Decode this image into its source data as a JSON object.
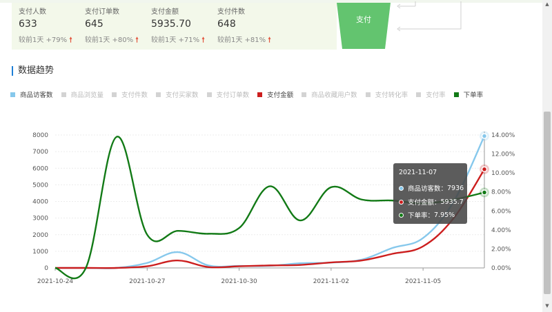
{
  "stats": [
    {
      "label": "支付人数",
      "value": "633",
      "compare": "较前1天 +79%"
    },
    {
      "label": "支付订单数",
      "value": "645",
      "compare": "较前1天 +80%"
    },
    {
      "label": "支付金额",
      "value": "5935.70",
      "compare": "较前1天 +71%"
    },
    {
      "label": "支付件数",
      "value": "648",
      "compare": "较前1天 +81%"
    }
  ],
  "funnel": {
    "pay_label": "支付"
  },
  "section_title": "数据趋势",
  "legend": [
    {
      "label": "商品访客数",
      "color": "#86c8ec",
      "active": true
    },
    {
      "label": "商品浏览量",
      "color": "#d3d3d3",
      "active": false
    },
    {
      "label": "支付件数",
      "color": "#d3d3d3",
      "active": false
    },
    {
      "label": "支付买家数",
      "color": "#d3d3d3",
      "active": false
    },
    {
      "label": "支付订单数",
      "color": "#d3d3d3",
      "active": false
    },
    {
      "label": "支付金额",
      "color": "#cc1e1e",
      "active": true
    },
    {
      "label": "商品收藏用户数",
      "color": "#d3d3d3",
      "active": false
    },
    {
      "label": "支付转化率",
      "color": "#d3d3d3",
      "active": false
    },
    {
      "label": "支付率",
      "color": "#d3d3d3",
      "active": false
    },
    {
      "label": "下单率",
      "color": "#127a16",
      "active": true
    }
  ],
  "chart_data": {
    "type": "line",
    "x": [
      "2021-10-24",
      "2021-10-25",
      "2021-10-26",
      "2021-10-27",
      "2021-10-28",
      "2021-10-29",
      "2021-10-30",
      "2021-10-31",
      "2021-11-01",
      "2021-11-02",
      "2021-11-03",
      "2021-11-04",
      "2021-11-05",
      "2021-11-06",
      "2021-11-07"
    ],
    "x_ticks": [
      "2021-10-24",
      "2021-10-27",
      "2021-10-30",
      "2021-11-02",
      "2021-11-05"
    ],
    "y_left_ticks": [
      "0",
      "1000",
      "2000",
      "3000",
      "4000",
      "5000",
      "6000",
      "7000",
      "8000"
    ],
    "y_left_range": [
      0,
      8000
    ],
    "y_right_ticks": [
      "0.00%",
      "2.00%",
      "4.00%",
      "6.00%",
      "8.00%",
      "10.00%",
      "12.00%",
      "14.00%"
    ],
    "y_right_range": [
      0,
      14
    ],
    "series": [
      {
        "name": "商品访客数",
        "color": "#86c8ec",
        "axis": "left",
        "values": [
          0,
          0,
          0,
          300,
          950,
          150,
          120,
          130,
          280,
          320,
          500,
          1200,
          1800,
          4000,
          7936
        ]
      },
      {
        "name": "支付金额",
        "color": "#cc1e1e",
        "axis": "left",
        "values": [
          0,
          0,
          0,
          100,
          450,
          50,
          100,
          150,
          180,
          330,
          450,
          850,
          1300,
          3000,
          5935.7
        ]
      },
      {
        "name": "下单率",
        "color": "#127a16",
        "axis": "right",
        "values": [
          0,
          0,
          13.8,
          3.5,
          3.9,
          3.6,
          4.2,
          8.6,
          5.0,
          8.5,
          7.2,
          7.1,
          6.8,
          7.2,
          7.95
        ]
      }
    ],
    "grid": true
  },
  "tooltip": {
    "date": "2021-11-07",
    "rows": [
      {
        "label": "商品访客数：",
        "value": "7936",
        "color": "#86c8ec"
      },
      {
        "label": "支付金额：",
        "value": "5935.7",
        "color": "#cc1e1e"
      },
      {
        "label": "下单率：",
        "value": "7.95%",
        "color": "#127a16"
      }
    ]
  }
}
